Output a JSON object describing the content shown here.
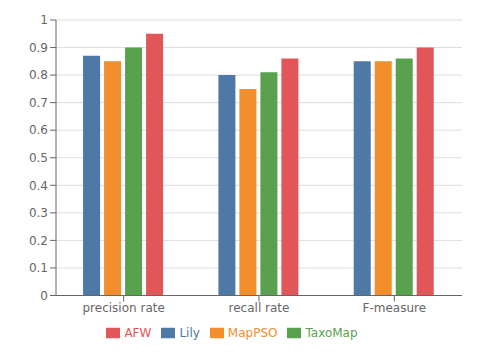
{
  "chart_data": {
    "type": "bar",
    "categories": [
      "precision rate",
      "recall rate",
      "F-measure"
    ],
    "series": [
      {
        "name": "Lily",
        "color": "#4e79a7",
        "values": [
          0.87,
          0.8,
          0.85
        ]
      },
      {
        "name": "MapPSO",
        "color": "#f28e2b",
        "values": [
          0.85,
          0.75,
          0.85
        ]
      },
      {
        "name": "TaxoMap",
        "color": "#59a14f",
        "values": [
          0.9,
          0.81,
          0.86
        ]
      },
      {
        "name": "AFW",
        "color": "#e15759",
        "values": [
          0.95,
          0.86,
          0.9
        ]
      }
    ],
    "ylim": [
      0,
      1.0
    ],
    "yticks": [
      0,
      0.1,
      0.2,
      0.3,
      0.4,
      0.5,
      0.6,
      0.7,
      0.8,
      0.9,
      1.0
    ],
    "grid": true,
    "legend": "bottom"
  }
}
